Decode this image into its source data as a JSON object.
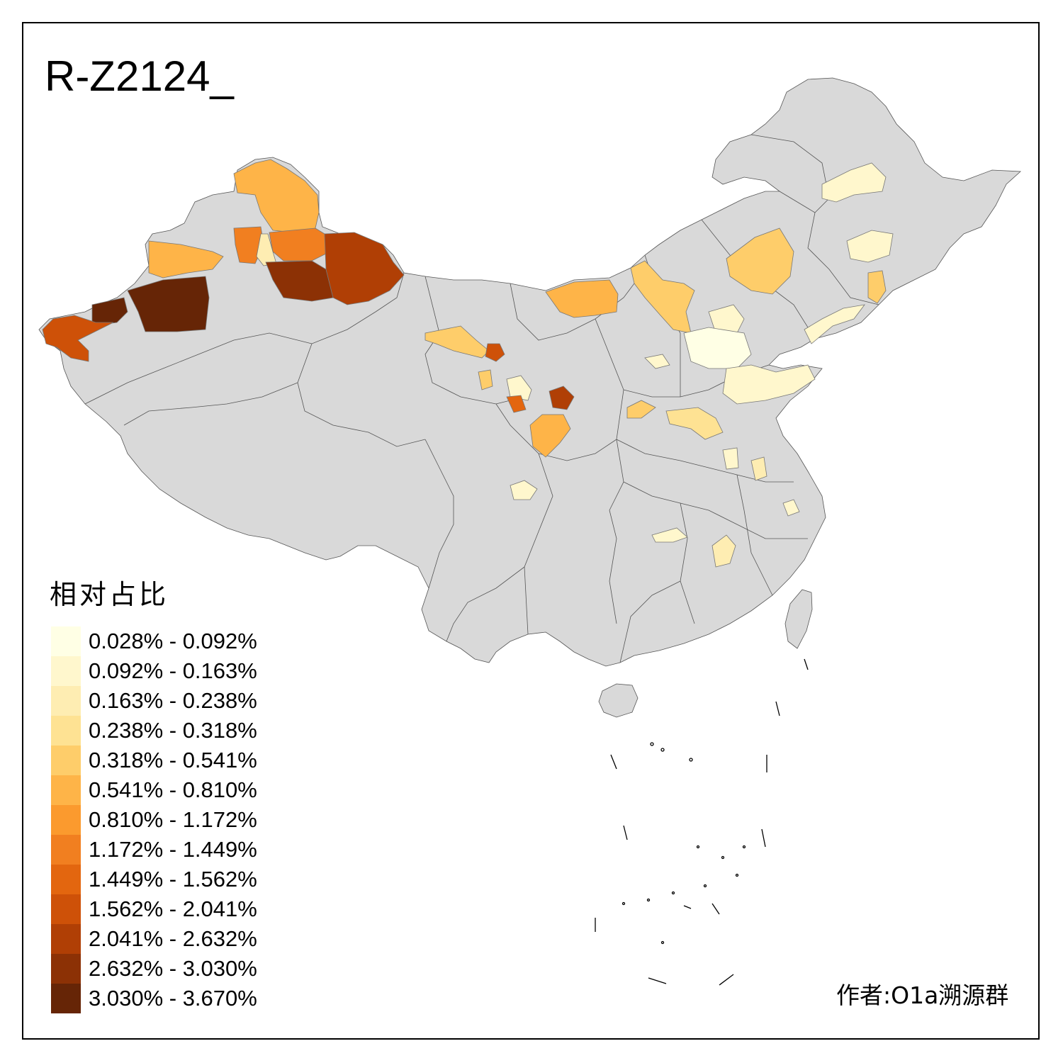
{
  "title": "R-Z2124_",
  "legend": {
    "title": "相对占比",
    "classes": [
      {
        "label": "0.028% - 0.092%",
        "color": "#FFFFE5"
      },
      {
        "label": "0.092% - 0.163%",
        "color": "#FFF7CD"
      },
      {
        "label": "0.163% - 0.238%",
        "color": "#FEEDB2"
      },
      {
        "label": "0.238% - 0.318%",
        "color": "#FEE293"
      },
      {
        "label": "0.318% - 0.541%",
        "color": "#FECD6A"
      },
      {
        "label": "0.541% - 0.810%",
        "color": "#FEB448"
      },
      {
        "label": "0.810% - 1.172%",
        "color": "#FB9A2E"
      },
      {
        "label": "1.172% - 1.449%",
        "color": "#F17F20"
      },
      {
        "label": "1.449% - 1.562%",
        "color": "#E3660F"
      },
      {
        "label": "1.562% - 2.041%",
        "color": "#CE5108"
      },
      {
        "label": "2.041% - 2.632%",
        "color": "#B03F05"
      },
      {
        "label": "2.632% - 3.030%",
        "color": "#8C3105"
      },
      {
        "label": "3.030% - 3.670%",
        "color": "#662506"
      }
    ]
  },
  "no_data_color": "#D9D9D9",
  "regions": [
    {
      "id": "altay",
      "class": 5
    },
    {
      "id": "tacheng",
      "class": 7
    },
    {
      "id": "karamay",
      "class": 2
    },
    {
      "id": "changji",
      "class": 7
    },
    {
      "id": "yili",
      "class": 5
    },
    {
      "id": "bayingolin",
      "class": 12
    },
    {
      "id": "aksu",
      "class": 12
    },
    {
      "id": "kashgar",
      "class": 9
    },
    {
      "id": "urumqi",
      "class": 11
    },
    {
      "id": "hami",
      "class": 10
    },
    {
      "id": "gansu-hexi",
      "class": 4
    },
    {
      "id": "lanzhou",
      "class": 9
    },
    {
      "id": "dingxi",
      "class": 4
    },
    {
      "id": "tianshui",
      "class": 8
    },
    {
      "id": "pingliang",
      "class": 1
    },
    {
      "id": "yanan",
      "class": 10
    },
    {
      "id": "xian",
      "class": 5
    },
    {
      "id": "alxa",
      "class": 5
    },
    {
      "id": "ordos",
      "class": 4
    },
    {
      "id": "xilingol",
      "class": 4
    },
    {
      "id": "hulunbuir",
      "class": 1
    },
    {
      "id": "heilongjiang",
      "class": 1
    },
    {
      "id": "liaoning-east",
      "class": 4
    },
    {
      "id": "dalian",
      "class": 1
    },
    {
      "id": "beijing",
      "class": 1
    },
    {
      "id": "hebei",
      "class": 0
    },
    {
      "id": "taiyuan",
      "class": 1
    },
    {
      "id": "shandong",
      "class": 1
    },
    {
      "id": "henan",
      "class": 4
    },
    {
      "id": "luoyang",
      "class": 3
    },
    {
      "id": "anhui",
      "class": 1
    },
    {
      "id": "jiangsu",
      "class": 2
    },
    {
      "id": "sichuan",
      "class": 1
    },
    {
      "id": "hubei",
      "class": 1
    },
    {
      "id": "jiangxi",
      "class": 2
    },
    {
      "id": "zhejiang",
      "class": 1
    }
  ],
  "author": "作者:O1a溯源群"
}
